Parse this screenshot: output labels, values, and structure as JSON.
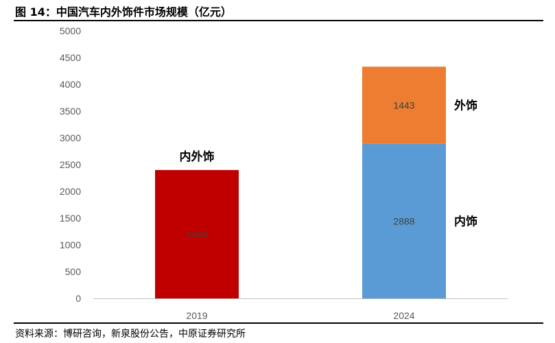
{
  "header": {
    "title": "图 14：中国汽车内外饰件市场规模（亿元）"
  },
  "footer": {
    "source": "资料来源：博研咨询，新泉股份公告，中原证券研究所"
  },
  "chart_data": {
    "type": "bar",
    "stacked": true,
    "title": "",
    "xlabel": "",
    "ylabel": "",
    "ylim": [
      0,
      5000
    ],
    "yticks": [
      0,
      500,
      1000,
      1500,
      2000,
      2500,
      3000,
      3500,
      4000,
      4500,
      5000
    ],
    "grid": false,
    "legend": "none",
    "categories": [
      "2019",
      "2024"
    ],
    "series": [
      {
        "name": "内外饰",
        "color": "#C00000",
        "values": [
          2400,
          null
        ]
      },
      {
        "name": "内饰",
        "color": "#5B9BD5",
        "values": [
          null,
          2888
        ]
      },
      {
        "name": "外饰",
        "color": "#ED7D31",
        "values": [
          null,
          1443
        ]
      }
    ]
  }
}
